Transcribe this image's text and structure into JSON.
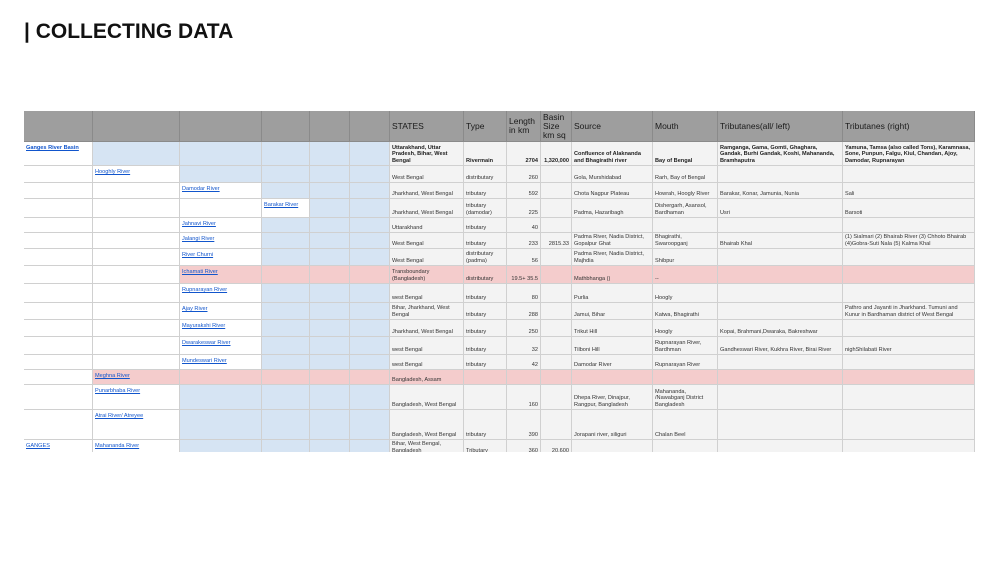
{
  "header": {
    "title": "| COLLECTING DATA"
  },
  "table": {
    "columns": [
      "STATES",
      "Type",
      "Length in km",
      "Basin Size km sq",
      "Source",
      "Mouth",
      "Tributanes(all/ left)",
      "Tributanes (right)"
    ],
    "rows": [
      {
        "river": "Ganges River Basin",
        "states": "Uttarakhand, Uttar Pradesh, Bihar, West Bengal",
        "type": "Rivermain",
        "length": 2704,
        "basin": "1,320,000",
        "source": "Confluence of Alaknanda and Bhagirathi river",
        "mouth": "Bay of Bengal",
        "trib_left": "Ramganga, Gama, Gomti, Ghaghara, Gandak, Burhi Gandak, Koshi, Mahananda, Bramhaputra",
        "trib_right": "Yamuna, Tamsa (also called Tons), Karamnasa, Sone, Punpun, Falgu, Kiul, Chandan, Ajoy, Damodar, Rupnarayan"
      },
      {
        "river": "Hooghly River",
        "states": "West Bengal",
        "type": "distributary",
        "length": 260,
        "source": "Gola, Murshidabad",
        "mouth": "Rarh, Bay of Bengal"
      },
      {
        "river": "Damodar River",
        "states": "Jharkhand, West Bengal",
        "type": "tributary",
        "length": 592,
        "source": "Chota Nagpur Plateau",
        "mouth": "Howrah, Hoogly River",
        "trib_left": "Barakar, Konar, Jamunia, Nunia",
        "trib_right": "Sali"
      },
      {
        "river": "Barakar River",
        "states": "Jharkhand, West Bengal",
        "type": "tributary (damodar)",
        "length": 225,
        "source": "Padma, Hazaribagh",
        "mouth": "Dishergarh, Asansol, Bardhaman",
        "trib_left": "Usri",
        "trib_right": "Barsoti"
      },
      {
        "river": "Jahnavi River",
        "states": "Uttarakhand",
        "type": "tributary",
        "length": 40
      },
      {
        "river": "Jalangi River",
        "states": "West Bengal",
        "type": "tributary",
        "length": 233,
        "basin": 2815.33,
        "source": "Padma River, Nadia District, Gopalpur Ghat",
        "mouth": "Bhagirathi, Swaroopganj",
        "trib_left": "Bhairab Khal",
        "trib_right": "(1) Sialmari (2) Bhairab River (3) Chhoto Bhairab (4)Gobra-Suti Nala (5) Kalma Khal"
      },
      {
        "river": "River Churni",
        "states": "West Bengal",
        "type": "distributary (padma)",
        "length": 56,
        "source": "Padma River, Nadia District, Majhdia",
        "mouth": "Shibpur"
      },
      {
        "river": "Ichamati River",
        "states": "Transboundary (Bangladesh)",
        "type": "distributary",
        "length": "19.5+ 35.5",
        "source": "Mathbhanga ()",
        "mouth": "--"
      },
      {
        "river": "Rupnarayan River",
        "states": "west Bengal",
        "type": "tributary",
        "length": 80,
        "source": "Purlia",
        "mouth": "Hoogly"
      },
      {
        "river": "Ajay River",
        "states": "Bihar, Jharkhand, West Bengal",
        "type": "tributary",
        "length": 288,
        "source": "Jamui, Bihar",
        "mouth": "Katwa, Bhagirathi",
        "trib_right": "Pathro and Jayanti in Jharkhand. Tumuni and Kunur in Bardhaman district of West Bengal"
      },
      {
        "river": "Mayurakshi River",
        "states": "Jharkhand, West Bengal",
        "type": "tributary",
        "length": 250,
        "source": "Trikut Hill",
        "mouth": "Hoogly",
        "trib_left": "Kopai, Brahmani,Dwaraka, Bakreshwar"
      },
      {
        "river": "Dwarakeswar River",
        "states": "west Bengal",
        "type": "tributary",
        "length": 32,
        "source": "Tilboni Hill",
        "mouth": "Rupnarayan River, Bardhman",
        "trib_left": "Gandheswari River, Kukhra River, Birai River",
        "trib_right": "nighShilabati River"
      },
      {
        "river": "Mundeswari River",
        "states": "west Bengal",
        "type": "tributary",
        "length": 42,
        "source": "Damodar River",
        "mouth": "Rupnarayan River"
      },
      {
        "river": "Meghna River",
        "states": "Bangladesh, Assam"
      },
      {
        "river": "Punarbhaba River",
        "states": "Bangladesh, West Bengal",
        "length": 160,
        "source": "Dhepa River, Dinajpur, Rangpur, Bangladesh",
        "mouth": "Mahananda, /Nawabganj District Bangladesh"
      },
      {
        "river": "Atrai River/ Atreyee",
        "states": "Bangladesh, West Bengal",
        "type": "tributary",
        "length": 390,
        "source": "Jorapani river, siliguri",
        "mouth": "Chalan Beel"
      },
      {
        "group": "GANGES",
        "river": "Mahananda River",
        "states": "Bihar, West Bengal, Bangladesh",
        "type": "Tributary",
        "length": 360,
        "basin": "20,600"
      }
    ]
  }
}
